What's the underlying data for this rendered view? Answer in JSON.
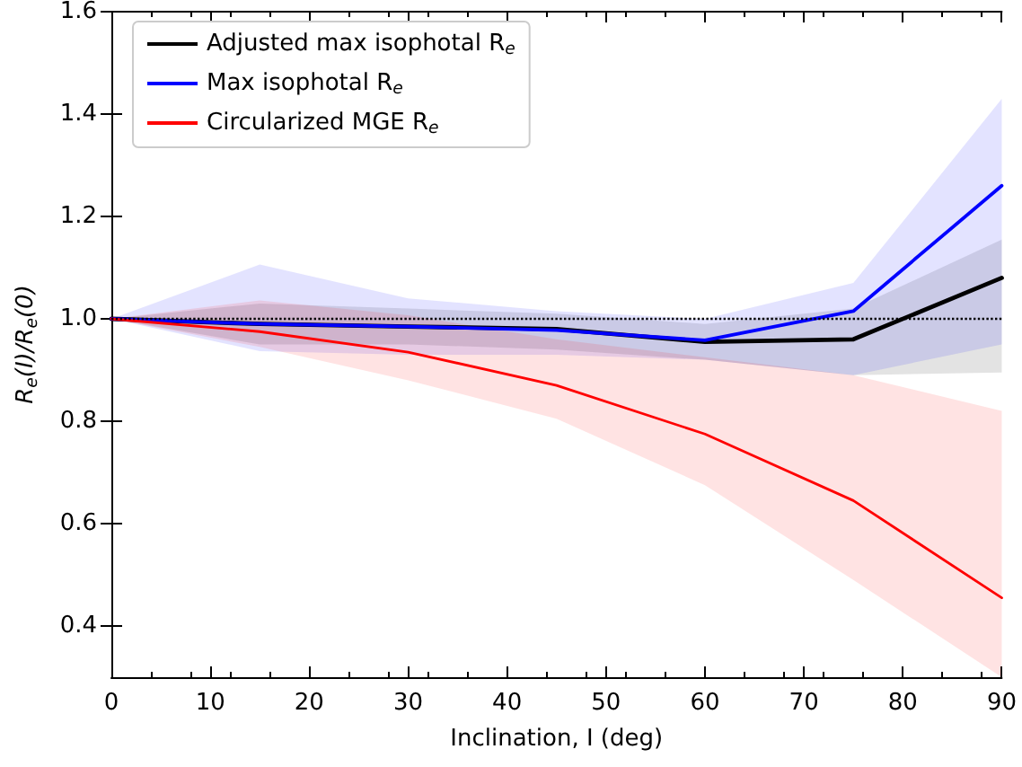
{
  "chart_data": {
    "type": "line",
    "xlabel": "Inclination, I (deg)",
    "ylabel": "R$_{e}$(I)/R$_{e}$(0)",
    "x": [
      0,
      15,
      30,
      45,
      60,
      75,
      90
    ],
    "series": [
      {
        "name": "Adjusted max isophotal R$_{e}$",
        "color": "#000000",
        "values": [
          1.0,
          0.99,
          0.985,
          0.98,
          0.955,
          0.96,
          1.08
        ],
        "lower": [
          1.0,
          0.95,
          0.95,
          0.94,
          0.92,
          0.89,
          0.895
        ],
        "upper": [
          1.0,
          1.03,
          1.02,
          1.01,
          0.99,
          1.02,
          1.155
        ]
      },
      {
        "name": "Max isophotal R$_{e}$",
        "color": "#0000ff",
        "values": [
          1.0,
          0.99,
          0.985,
          0.978,
          0.958,
          1.015,
          1.26
        ],
        "lower": [
          1.0,
          0.937,
          0.93,
          0.93,
          0.92,
          0.89,
          0.95
        ],
        "upper": [
          1.0,
          1.106,
          1.04,
          1.015,
          1.0,
          1.07,
          1.43
        ]
      },
      {
        "name": "Circularized MGE R$_{e}$",
        "color": "#ff0000",
        "values": [
          1.0,
          0.975,
          0.935,
          0.87,
          0.775,
          0.645,
          0.455
        ],
        "lower": [
          1.0,
          0.945,
          0.88,
          0.805,
          0.675,
          0.49,
          0.3
        ],
        "upper": [
          1.0,
          1.036,
          1.007,
          0.96,
          0.925,
          0.89,
          0.82
        ]
      }
    ],
    "xlim": [
      0,
      90
    ],
    "xticks": [
      0,
      10,
      20,
      30,
      40,
      50,
      60,
      70,
      80,
      90
    ],
    "ylim": [
      0.3,
      1.6
    ],
    "yticks": [
      {
        "value": 0.4,
        "label": "0.4"
      },
      {
        "value": 0.6,
        "label": "0.6"
      },
      {
        "value": 0.8,
        "label": "0.8"
      },
      {
        "value": 1.0,
        "label": "1.0"
      },
      {
        "value": 1.2,
        "label": "1.2"
      },
      {
        "value": 1.4,
        "label": "1.4"
      },
      {
        "value": 1.6,
        "label": "1.6"
      }
    ],
    "ref_lines": [
      {
        "axis": "y",
        "value": 1.0,
        "color": "#000000",
        "line_style": "dotted"
      }
    ],
    "legend": "top left",
    "grid": false,
    "marker": "none",
    "line_style": "solid"
  }
}
